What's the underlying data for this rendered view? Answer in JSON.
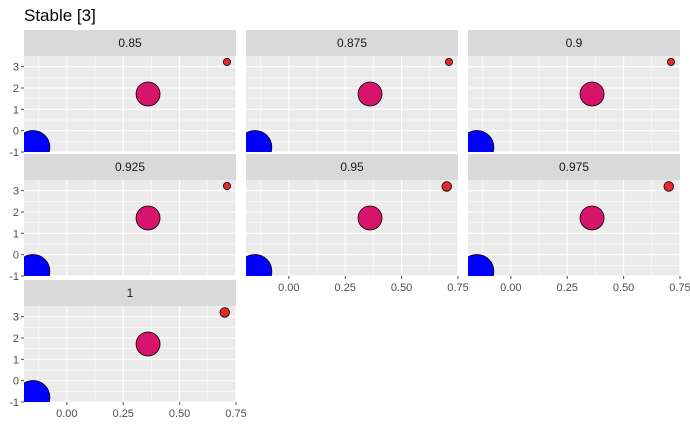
{
  "title": "Stable [3]",
  "colors": {
    "panel_bg": "#ebebeb",
    "strip_bg": "#d9d9d9",
    "grid": "#ffffff",
    "tick": "#4d4d4d",
    "blue": "#0000ff",
    "magenta": "#d6146b",
    "red": "#e8282b",
    "outline": "#000000"
  },
  "chart_data": {
    "type": "scatter",
    "title": "Stable [3]",
    "xlabel": "",
    "ylabel": "",
    "xlim": [
      -0.19,
      0.75
    ],
    "ylim": [
      -1.0,
      3.5
    ],
    "x_ticks": [
      0.0,
      0.25,
      0.5,
      0.75
    ],
    "x_tick_labels": [
      "0.00",
      "0.25",
      "0.50",
      "0.75"
    ],
    "y_ticks": [
      -1,
      0,
      1,
      2,
      3
    ],
    "y_tick_labels": [
      "-1",
      "0",
      "1",
      "2",
      "3"
    ],
    "grid": true,
    "facets": [
      {
        "label": "0.85",
        "points": [
          {
            "x": -0.15,
            "y": -0.78,
            "size": 14,
            "color": "blue"
          },
          {
            "x": 0.36,
            "y": 1.72,
            "size": 10,
            "color": "magenta"
          },
          {
            "x": 0.71,
            "y": 3.22,
            "size": 3,
            "color": "red"
          }
        ]
      },
      {
        "label": "0.875",
        "points": [
          {
            "x": -0.15,
            "y": -0.78,
            "size": 14,
            "color": "blue"
          },
          {
            "x": 0.36,
            "y": 1.72,
            "size": 10,
            "color": "magenta"
          },
          {
            "x": 0.71,
            "y": 3.22,
            "size": 3,
            "color": "red"
          }
        ]
      },
      {
        "label": "0.9",
        "points": [
          {
            "x": -0.15,
            "y": -0.78,
            "size": 14,
            "color": "blue"
          },
          {
            "x": 0.36,
            "y": 1.72,
            "size": 10,
            "color": "magenta"
          },
          {
            "x": 0.71,
            "y": 3.22,
            "size": 3,
            "color": "red"
          }
        ]
      },
      {
        "label": "0.925",
        "points": [
          {
            "x": -0.15,
            "y": -0.78,
            "size": 14,
            "color": "blue"
          },
          {
            "x": 0.36,
            "y": 1.72,
            "size": 10,
            "color": "magenta"
          },
          {
            "x": 0.71,
            "y": 3.22,
            "size": 3,
            "color": "red"
          }
        ]
      },
      {
        "label": "0.95",
        "points": [
          {
            "x": -0.15,
            "y": -0.78,
            "size": 14,
            "color": "blue"
          },
          {
            "x": 0.36,
            "y": 1.72,
            "size": 10,
            "color": "magenta"
          },
          {
            "x": 0.7,
            "y": 3.2,
            "size": 4,
            "color": "red"
          }
        ]
      },
      {
        "label": "0.975",
        "points": [
          {
            "x": -0.15,
            "y": -0.78,
            "size": 14,
            "color": "blue"
          },
          {
            "x": 0.36,
            "y": 1.72,
            "size": 10,
            "color": "magenta"
          },
          {
            "x": 0.7,
            "y": 3.2,
            "size": 4,
            "color": "red"
          }
        ]
      },
      {
        "label": "1",
        "points": [
          {
            "x": -0.15,
            "y": -0.78,
            "size": 14,
            "color": "blue"
          },
          {
            "x": 0.36,
            "y": 1.72,
            "size": 10,
            "color": "magenta"
          },
          {
            "x": 0.7,
            "y": 3.2,
            "size": 4,
            "color": "red"
          }
        ]
      }
    ]
  }
}
